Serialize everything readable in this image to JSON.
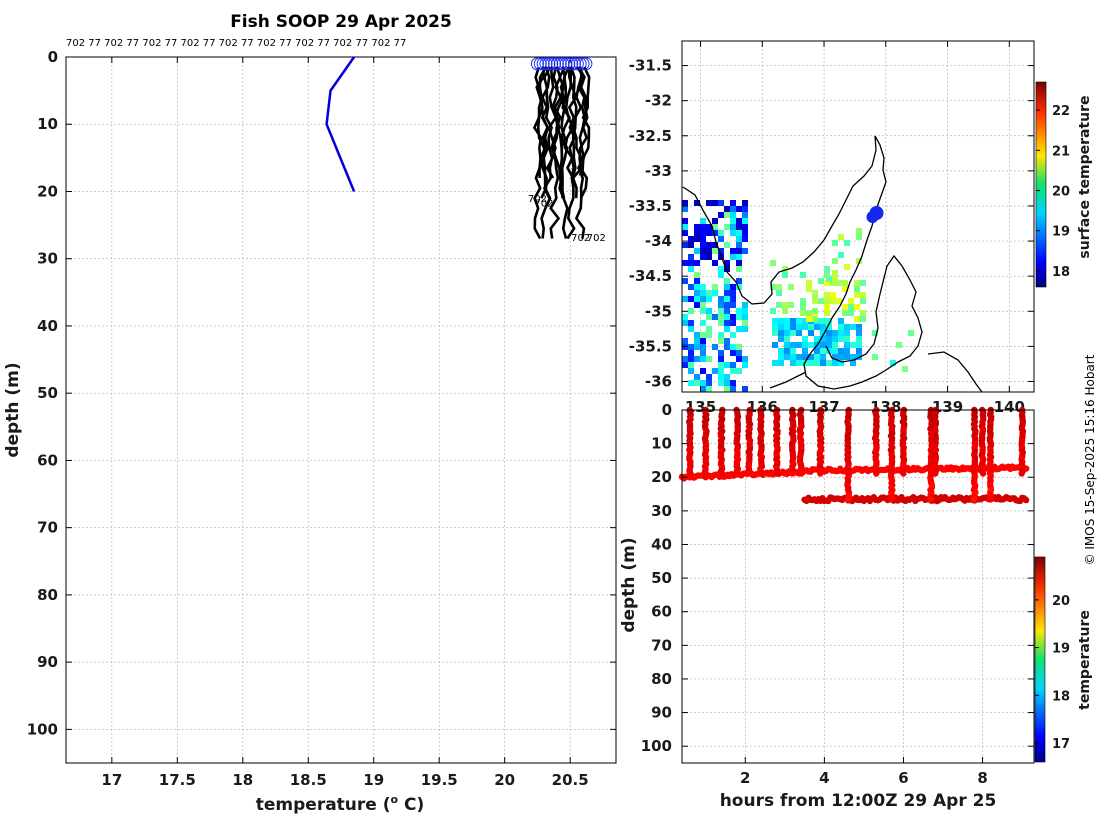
{
  "title": "Fish SOOP 29 Apr 2025",
  "credit": "© IMOS 15-Sep-2025 15:16 Hobart",
  "colors": {
    "profile_line": "#0000dd",
    "traces": "#000000",
    "marker": "#2030ee",
    "land": "#000000"
  },
  "chart_data": [
    {
      "type": "line",
      "name": "profile",
      "xlabel": "temperature (",
      "xlabel_sup": "o",
      "xlabel_end": " C)",
      "ylabel": "depth (m)",
      "xlim": [
        16.65,
        20.85
      ],
      "ylim": [
        105,
        0
      ],
      "xticks": [
        "17",
        "17.5",
        "18",
        "18.5",
        "19",
        "19.5",
        "20",
        "20.5"
      ],
      "yticks": [
        "0",
        "10",
        "20",
        "30",
        "40",
        "50",
        "60",
        "70",
        "80",
        "90",
        "100"
      ],
      "top_label_text": "702 77 702 77 702 77 702 77 702 77 702 77 702 77 702 77 702 77",
      "trace_labels": [
        "77",
        "702",
        "702",
        "702",
        "702"
      ],
      "series": [
        {
          "name": "climatology",
          "color": "#0000dd",
          "x": [
            18.85,
            18.67,
            18.64,
            18.85
          ],
          "y": [
            0,
            5,
            10,
            20
          ]
        },
        {
          "name": "sensor traces",
          "color": "#000000",
          "x_range": [
            20.25,
            20.62
          ],
          "y_range": [
            1.5,
            27.5
          ]
        }
      ]
    },
    {
      "type": "heatmap",
      "name": "map",
      "title": "",
      "yticks": [
        "-31.5",
        "-32",
        "-32.5",
        "-33",
        "-33.5",
        "-34",
        "-34.5",
        "-35",
        "-35.5",
        "-36"
      ],
      "xticks": [
        "135",
        "136",
        "137",
        "138",
        "139",
        "140"
      ],
      "xlim": [
        134.7,
        140.4
      ],
      "ylim": [
        -36.15,
        -31.15
      ],
      "marker": {
        "lon": 137.85,
        "lat": -33.6
      },
      "colorbar": {
        "label": "surface temperature",
        "ticks": [
          "18",
          "19",
          "20",
          "21",
          "22"
        ],
        "range": [
          17.6,
          22.7
        ]
      }
    },
    {
      "type": "scatter",
      "name": "depth-time",
      "xlabel": "hours from 12:00Z 29 Apr 25",
      "ylabel": "depth (m)",
      "xlim": [
        0.4,
        9.3
      ],
      "ylim": [
        105,
        0
      ],
      "xticks": [
        "2",
        "4",
        "6",
        "8"
      ],
      "yticks": [
        "0",
        "10",
        "20",
        "30",
        "40",
        "50",
        "60",
        "70",
        "80",
        "90",
        "100"
      ],
      "colorbar": {
        "label": "temperature",
        "ticks": [
          "17",
          "18",
          "19",
          "20"
        ],
        "range": [
          16.6,
          20.9
        ]
      },
      "series": [
        {
          "name": "surface track",
          "x_range": [
            0.4,
            9.1
          ],
          "y": [
            20,
            17
          ]
        },
        {
          "name": "deep track",
          "x_range": [
            3.5,
            9.1
          ],
          "y": [
            26,
            28
          ]
        }
      ]
    }
  ]
}
